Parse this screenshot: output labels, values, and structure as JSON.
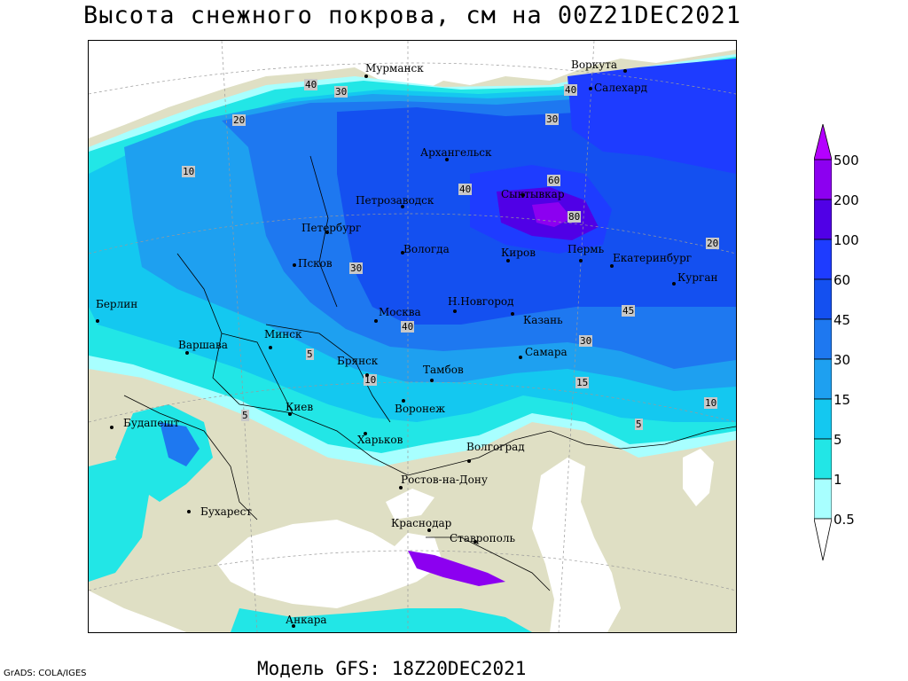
{
  "title": "Высота снежного покрова, см на 00Z21DEC2021",
  "footer": "Модель GFS: 18Z20DEC2021",
  "credit": "GrADS: COLA/IGES",
  "colors": {
    "land": "#dfdfc4",
    "water": "#ffffff",
    "c05": "#a8ffff",
    "c1": "#22e6e6",
    "c5": "#14c8f0",
    "c15": "#1ea0f0",
    "c30": "#1e78f0",
    "c45": "#1450f0",
    "c60": "#1e3cff",
    "c100": "#5000e6",
    "c200": "#8c00f0",
    "c500": "#b400ff"
  },
  "legend": {
    "levels": [
      "500",
      "200",
      "100",
      "60",
      "45",
      "30",
      "15",
      "5",
      "1",
      "0.5"
    ]
  },
  "cities": [
    {
      "name": "Мурманск"
    },
    {
      "name": "Воркута"
    },
    {
      "name": "Салехард"
    },
    {
      "name": "Архангельск"
    },
    {
      "name": "Сыктывкар"
    },
    {
      "name": "Петрозаводск"
    },
    {
      "name": "Петербург"
    },
    {
      "name": "Вологда"
    },
    {
      "name": "Киров"
    },
    {
      "name": "Пермь"
    },
    {
      "name": "Екатеринбург"
    },
    {
      "name": "Курган"
    },
    {
      "name": "Псков"
    },
    {
      "name": "Н.Новгород"
    },
    {
      "name": "Москва"
    },
    {
      "name": "Казань"
    },
    {
      "name": "Берлин"
    },
    {
      "name": "Варшава"
    },
    {
      "name": "Минск"
    },
    {
      "name": "Брянск"
    },
    {
      "name": "Самара"
    },
    {
      "name": "Тамбов"
    },
    {
      "name": "Киев"
    },
    {
      "name": "Воронеж"
    },
    {
      "name": "Будапешт"
    },
    {
      "name": "Харьков"
    },
    {
      "name": "Волгоград"
    },
    {
      "name": "Ростов-на-Дону"
    },
    {
      "name": "Бухарест"
    },
    {
      "name": "Краснодар"
    },
    {
      "name": "Ставрополь"
    },
    {
      "name": "Анкара"
    }
  ],
  "contour_labels": [
    "40",
    "30",
    "20",
    "10",
    "40",
    "30",
    "60",
    "80",
    "40",
    "45",
    "20",
    "30",
    "5",
    "10",
    "15",
    "5",
    "10",
    "40",
    "30",
    "20",
    "5"
  ]
}
